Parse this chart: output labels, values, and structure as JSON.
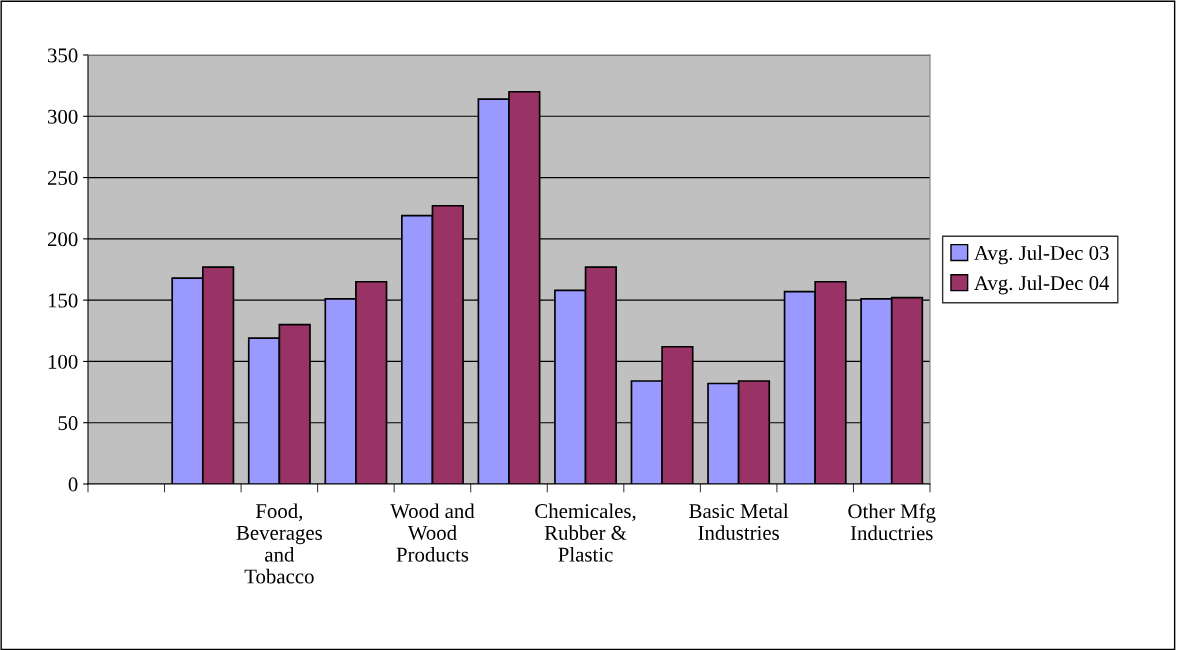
{
  "chart_data": {
    "type": "bar",
    "categories": [
      null,
      null,
      "Food,\nBeverages\nand\nTobacco",
      null,
      "Wood and\nWood\nProducts",
      null,
      "Chemicales,\nRubber &\nPlastic",
      null,
      "Basic Metal\nIndustries",
      null,
      "Other Mfg\nInductries"
    ],
    "series": [
      {
        "name": "Avg. Jul-Dec 03",
        "color": "#9999ff",
        "values": [
          null,
          168,
          119,
          151,
          219,
          314,
          158,
          84,
          82,
          157,
          151
        ]
      },
      {
        "name": "Avg. Jul-Dec 04",
        "color": "#993366",
        "values": [
          null,
          177,
          130,
          165,
          227,
          320,
          177,
          112,
          84,
          165,
          152
        ]
      }
    ],
    "ylim": [
      0,
      350
    ],
    "yticks": [
      0,
      50,
      100,
      150,
      200,
      250,
      300,
      350
    ],
    "grid": "y",
    "legend": "right"
  }
}
